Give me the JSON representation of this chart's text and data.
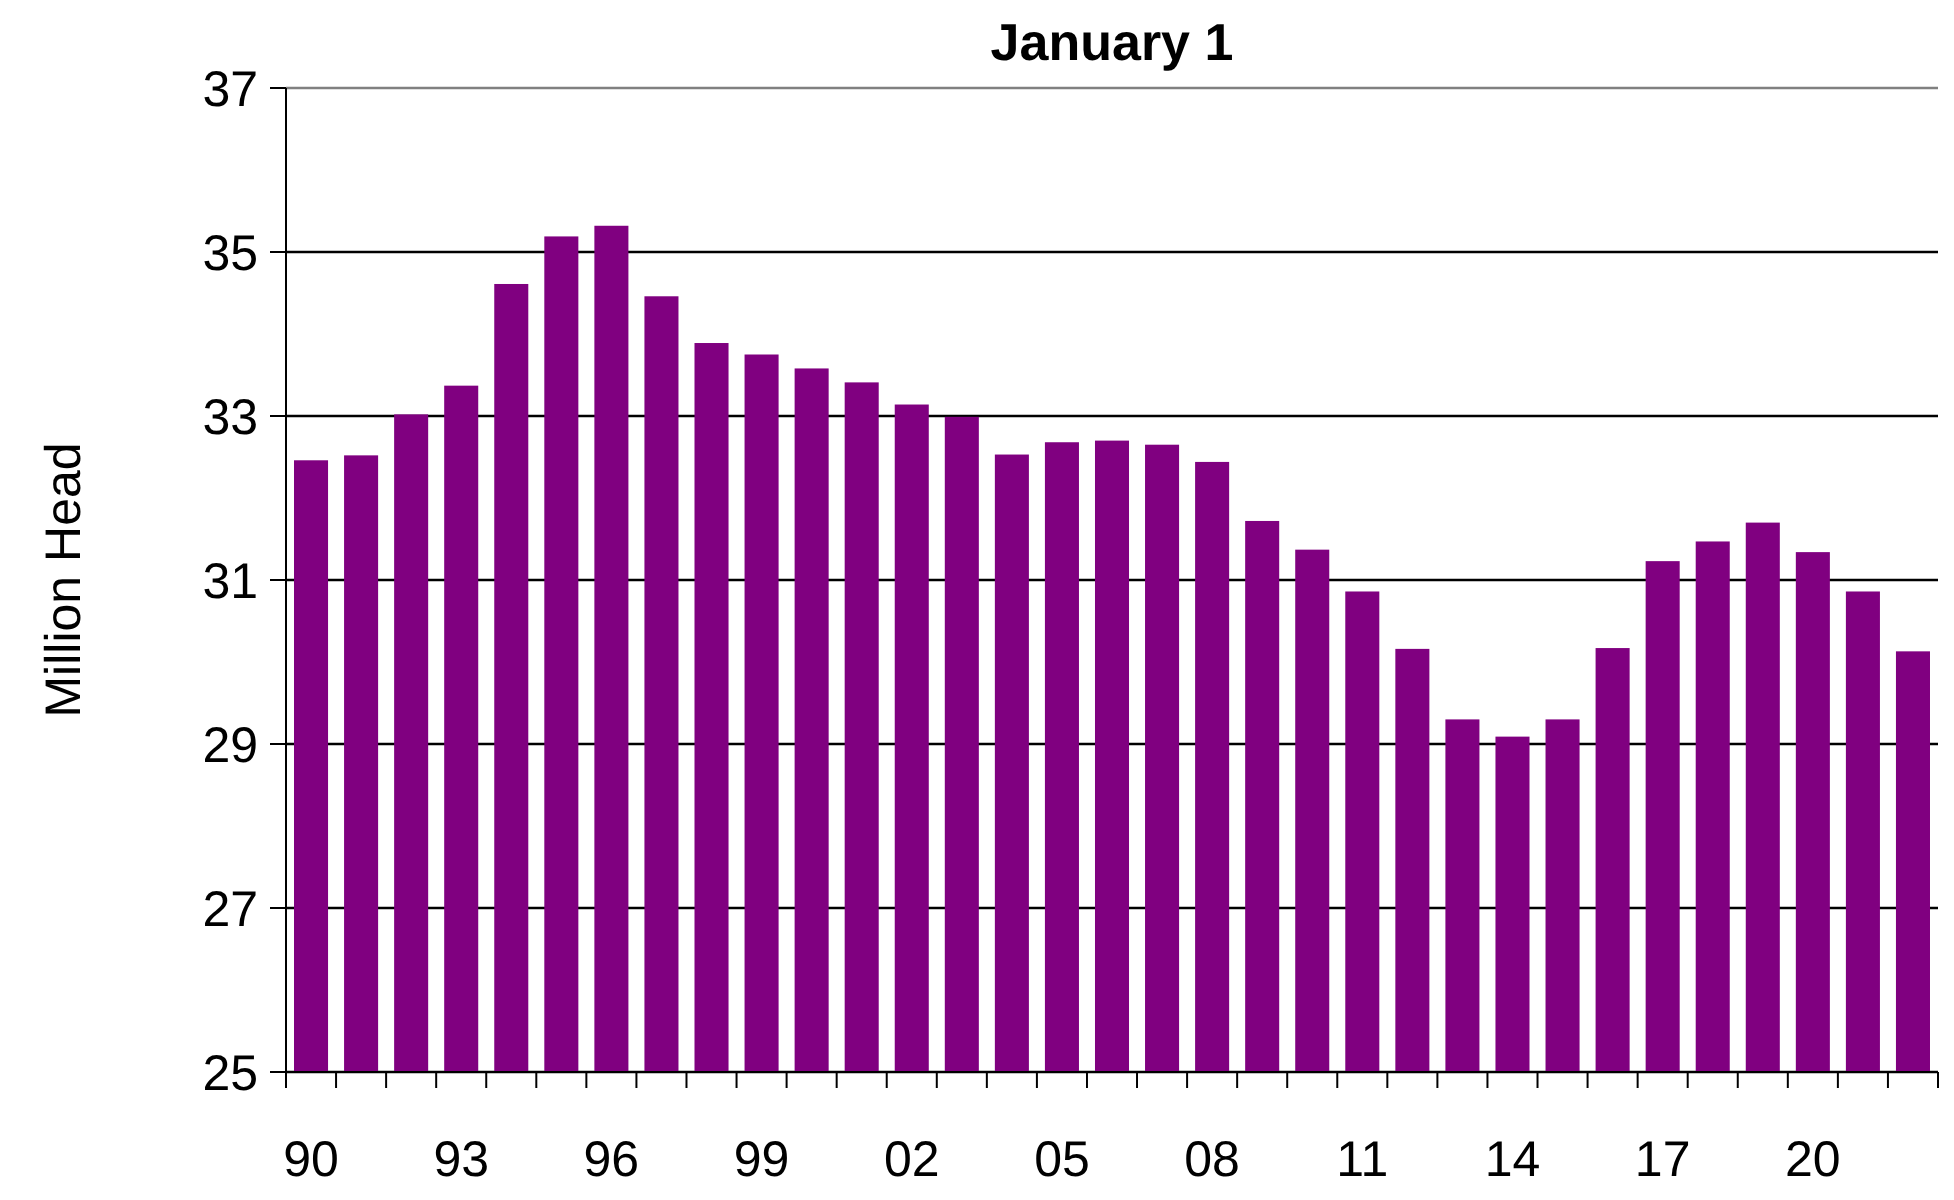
{
  "chart_data": {
    "type": "bar",
    "title": "January 1",
    "ylabel": "Million Head",
    "categories": [
      "90",
      null,
      null,
      "93",
      null,
      null,
      "96",
      null,
      null,
      "99",
      null,
      null,
      "02",
      null,
      null,
      "05",
      null,
      null,
      "08",
      null,
      null,
      "11",
      null,
      null,
      "14",
      null,
      null,
      "17",
      null,
      null,
      "20",
      null,
      null
    ],
    "values": [
      32.46,
      32.52,
      33.02,
      33.37,
      34.61,
      35.19,
      35.32,
      34.46,
      33.89,
      33.75,
      33.58,
      33.41,
      33.14,
      32.99,
      32.53,
      32.68,
      32.7,
      32.65,
      32.44,
      31.72,
      31.37,
      30.86,
      30.16,
      29.3,
      29.09,
      29.3,
      30.17,
      31.23,
      31.47,
      31.7,
      31.34,
      30.86,
      30.13
    ],
    "color": "#800080",
    "ylim": [
      25,
      37
    ],
    "yticks": [
      25,
      27,
      29,
      31,
      33,
      35,
      37
    ],
    "grid": "y"
  }
}
